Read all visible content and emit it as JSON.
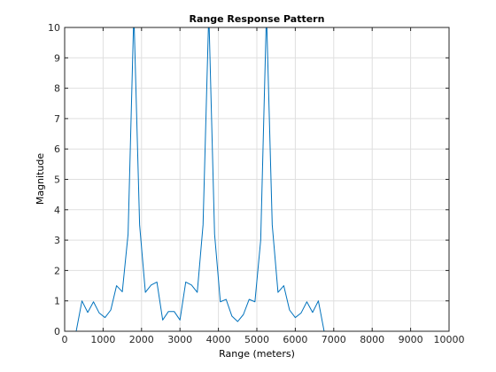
{
  "colors": {
    "line": "#0072BD",
    "grid": "#dfdfdf",
    "axis": "#262626",
    "background": "#ffffff"
  },
  "chart_data": {
    "type": "line",
    "title": "Range Response Pattern",
    "xlabel": "Range (meters)",
    "ylabel": "Magnitude",
    "xlim": [
      0,
      10000
    ],
    "ylim": [
      0,
      10
    ],
    "xticks": [
      0,
      1000,
      2000,
      3000,
      4000,
      5000,
      6000,
      7000,
      8000,
      9000,
      10000
    ],
    "yticks": [
      0,
      1,
      2,
      3,
      4,
      5,
      6,
      7,
      8,
      9,
      10
    ],
    "grid": true,
    "legend": "none",
    "series": [
      {
        "x": [
          0,
          150,
          300,
          450,
          600,
          750,
          900,
          1050,
          1200,
          1350,
          1500,
          1650,
          1800,
          1950,
          2100,
          2250,
          2400,
          2550,
          2700,
          2850,
          3000,
          3150,
          3300,
          3450,
          3600,
          3750,
          3900,
          4050,
          4200,
          4350,
          4500,
          4650,
          4800,
          4950,
          5100,
          5250,
          5400,
          5550,
          5700,
          5850,
          6000,
          6150,
          6300,
          6450,
          6600,
          6750,
          6900,
          7050,
          7200,
          7350,
          7500,
          7650,
          7800,
          7950,
          8100,
          8250,
          8400,
          8550,
          8700,
          8850,
          9000,
          9150,
          9300,
          9450,
          9600,
          9750,
          9900,
          10000
        ],
        "y": [
          0,
          0,
          0,
          1.0,
          0.62,
          0.97,
          0.6,
          0.45,
          0.7,
          1.5,
          1.3,
          3.2,
          10.5,
          3.5,
          1.28,
          1.52,
          1.62,
          0.37,
          0.65,
          0.65,
          0.37,
          1.62,
          1.52,
          1.28,
          3.5,
          10.5,
          3.2,
          0.97,
          1.05,
          0.5,
          0.32,
          0.55,
          1.05,
          0.97,
          3.0,
          10.5,
          3.5,
          1.28,
          1.5,
          0.7,
          0.45,
          0.6,
          0.97,
          0.62,
          1.0,
          0,
          0,
          0,
          0,
          0,
          0,
          0,
          0,
          0,
          0,
          0,
          0,
          0,
          0,
          0,
          0,
          0,
          0,
          0,
          0,
          0,
          0,
          0
        ]
      }
    ]
  }
}
